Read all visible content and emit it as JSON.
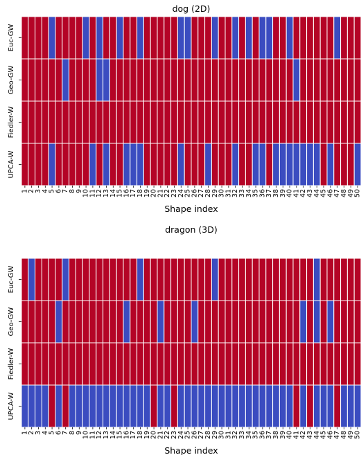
{
  "colors": {
    "positive": "#b40426",
    "negative": "#3b4cc0",
    "separator": "#ffffff",
    "tick": "#000000"
  },
  "chart_data": [
    {
      "type": "heatmap",
      "title": "dog (2D)",
      "xlabel": "Shape index",
      "ylabel": "",
      "grid": false,
      "legend": "none",
      "x": [
        "1",
        "2",
        "3",
        "4",
        "5",
        "6",
        "7",
        "8",
        "9",
        "10",
        "11",
        "12",
        "13",
        "14",
        "15",
        "16",
        "17",
        "18",
        "19",
        "20",
        "21",
        "22",
        "23",
        "24",
        "25",
        "26",
        "27",
        "28",
        "29",
        "30",
        "31",
        "32",
        "33",
        "34",
        "35",
        "36",
        "37",
        "38",
        "39",
        "40",
        "41",
        "42",
        "43",
        "44",
        "45",
        "46",
        "47",
        "48",
        "49",
        "50"
      ],
      "rows": [
        {
          "label": "Euc-GW",
          "values": [
            1,
            1,
            1,
            1,
            0,
            1,
            1,
            1,
            1,
            0,
            1,
            0,
            1,
            1,
            0,
            1,
            1,
            0,
            1,
            1,
            1,
            1,
            1,
            0,
            0,
            1,
            1,
            1,
            0,
            1,
            1,
            0,
            1,
            0,
            1,
            0,
            0,
            1,
            1,
            0,
            1,
            1,
            1,
            1,
            1,
            1,
            0,
            1,
            1,
            1
          ]
        },
        {
          "label": "Geo-GW",
          "values": [
            1,
            1,
            1,
            1,
            1,
            1,
            0,
            1,
            1,
            1,
            1,
            0,
            0,
            1,
            1,
            1,
            1,
            1,
            1,
            1,
            1,
            1,
            1,
            1,
            1,
            1,
            1,
            1,
            1,
            1,
            1,
            1,
            1,
            1,
            1,
            1,
            1,
            1,
            1,
            1,
            0,
            1,
            1,
            1,
            1,
            1,
            1,
            1,
            1,
            1
          ]
        },
        {
          "label": "Fiedler-W",
          "values": [
            1,
            1,
            1,
            1,
            1,
            1,
            1,
            1,
            1,
            1,
            1,
            1,
            1,
            1,
            1,
            1,
            1,
            1,
            1,
            1,
            1,
            1,
            1,
            1,
            1,
            1,
            1,
            1,
            1,
            1,
            1,
            1,
            1,
            1,
            1,
            1,
            1,
            1,
            1,
            1,
            1,
            1,
            1,
            1,
            1,
            1,
            1,
            1,
            1,
            1
          ]
        },
        {
          "label": "UPCA-W",
          "values": [
            1,
            1,
            1,
            1,
            0,
            1,
            1,
            1,
            1,
            1,
            0,
            1,
            0,
            1,
            1,
            0,
            0,
            0,
            1,
            1,
            1,
            1,
            1,
            0,
            1,
            1,
            1,
            0,
            1,
            1,
            1,
            0,
            1,
            1,
            0,
            0,
            1,
            0,
            0,
            0,
            0,
            0,
            0,
            0,
            1,
            0,
            1,
            1,
            1,
            0
          ]
        }
      ]
    },
    {
      "type": "heatmap",
      "title": "dragon (3D)",
      "xlabel": "Shape index",
      "ylabel": "",
      "grid": false,
      "legend": "none",
      "x": [
        "1",
        "2",
        "3",
        "4",
        "5",
        "6",
        "7",
        "8",
        "9",
        "10",
        "11",
        "12",
        "13",
        "14",
        "15",
        "16",
        "17",
        "18",
        "19",
        "20",
        "21",
        "22",
        "23",
        "24",
        "25",
        "26",
        "27",
        "28",
        "29",
        "30",
        "31",
        "32",
        "33",
        "34",
        "35",
        "36",
        "37",
        "38",
        "39",
        "40",
        "41",
        "42",
        "43",
        "44",
        "45",
        "46",
        "47",
        "48",
        "49",
        "50"
      ],
      "rows": [
        {
          "label": "Euc-GW",
          "values": [
            1,
            0,
            1,
            1,
            1,
            1,
            0,
            1,
            1,
            1,
            1,
            1,
            1,
            1,
            1,
            1,
            1,
            0,
            1,
            1,
            1,
            1,
            1,
            1,
            1,
            1,
            1,
            1,
            0,
            1,
            1,
            1,
            1,
            1,
            1,
            1,
            1,
            1,
            1,
            1,
            1,
            1,
            1,
            0,
            1,
            1,
            1,
            1,
            1,
            1
          ]
        },
        {
          "label": "Geo-GW",
          "values": [
            1,
            1,
            1,
            1,
            1,
            0,
            1,
            1,
            1,
            1,
            1,
            1,
            1,
            1,
            1,
            0,
            1,
            1,
            1,
            1,
            0,
            1,
            1,
            1,
            1,
            0,
            1,
            1,
            1,
            1,
            1,
            1,
            1,
            1,
            1,
            1,
            1,
            1,
            1,
            1,
            1,
            0,
            1,
            0,
            1,
            0,
            1,
            1,
            1,
            1
          ]
        },
        {
          "label": "Fiedler-W",
          "values": [
            1,
            1,
            1,
            1,
            1,
            1,
            1,
            1,
            1,
            1,
            1,
            1,
            1,
            1,
            1,
            1,
            1,
            1,
            1,
            1,
            1,
            1,
            1,
            1,
            1,
            1,
            1,
            1,
            1,
            1,
            1,
            1,
            1,
            1,
            1,
            1,
            1,
            1,
            1,
            1,
            1,
            1,
            1,
            1,
            1,
            1,
            1,
            1,
            1,
            1
          ]
        },
        {
          "label": "UPCA-W",
          "values": [
            0,
            0,
            0,
            0,
            1,
            0,
            1,
            0,
            0,
            0,
            0,
            0,
            0,
            0,
            0,
            0,
            0,
            0,
            0,
            1,
            0,
            0,
            1,
            0,
            0,
            0,
            0,
            0,
            0,
            0,
            0,
            0,
            0,
            0,
            0,
            0,
            0,
            0,
            0,
            0,
            1,
            0,
            1,
            0,
            0,
            0,
            1,
            0,
            0,
            0
          ]
        }
      ]
    }
  ]
}
